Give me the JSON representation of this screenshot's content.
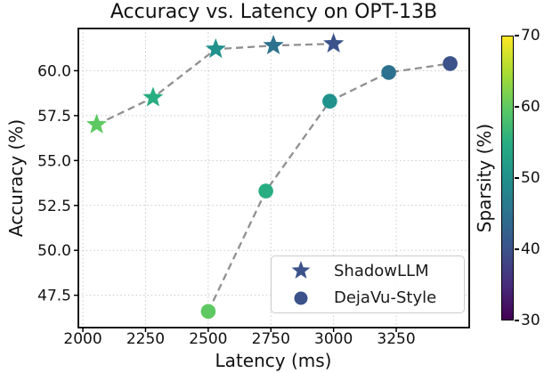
{
  "chart_data": {
    "type": "scatter",
    "title": "Accuracy vs. Latency on OPT-13B",
    "xlabel": "Latency (ms)",
    "ylabel": "Accuracy (%)",
    "xlim": [
      1982,
      3541
    ],
    "ylim": [
      45.7,
      62.35
    ],
    "xticks": [
      2000,
      2250,
      2500,
      2750,
      3000,
      3250
    ],
    "xtick_labels": [
      "2000",
      "2250",
      "2500",
      "2750",
      "3000",
      "3250"
    ],
    "yticks": [
      47.5,
      50.0,
      52.5,
      55.0,
      57.5,
      60.0
    ],
    "ytick_labels": [
      "47.5",
      "50.0",
      "52.5",
      "55.0",
      "57.5",
      "60.0"
    ],
    "grid": true,
    "grid_color": "#c9c9c9",
    "connector_color": "#909090",
    "series": [
      {
        "name": "ShadowLLM",
        "marker": "star",
        "points": [
          {
            "x": 2055,
            "y": 57.0,
            "sparsity": 60,
            "color": "#5ec962"
          },
          {
            "x": 2280,
            "y": 58.5,
            "sparsity": 55,
            "color": "#27ad81"
          },
          {
            "x": 2530,
            "y": 61.2,
            "sparsity": 50,
            "color": "#21918c"
          },
          {
            "x": 2760,
            "y": 61.4,
            "sparsity": 45,
            "color": "#2c728e"
          },
          {
            "x": 3000,
            "y": 61.5,
            "sparsity": 40,
            "color": "#3b528b"
          }
        ]
      },
      {
        "name": "DejaVu-Style",
        "marker": "circle",
        "points": [
          {
            "x": 2500,
            "y": 46.6,
            "sparsity": 60,
            "color": "#5ec962"
          },
          {
            "x": 2730,
            "y": 53.3,
            "sparsity": 55,
            "color": "#27ad81"
          },
          {
            "x": 2985,
            "y": 58.3,
            "sparsity": 50,
            "color": "#21918c"
          },
          {
            "x": 3220,
            "y": 59.9,
            "sparsity": 45,
            "color": "#2c728e"
          },
          {
            "x": 3465,
            "y": 60.4,
            "sparsity": 40,
            "color": "#3b528b"
          }
        ]
      }
    ],
    "legend": {
      "position": "lower right",
      "marker_color": "#3b528b",
      "entries": [
        {
          "label": "ShadowLLM",
          "marker": "star"
        },
        {
          "label": "DejaVu-Style",
          "marker": "circle"
        }
      ]
    },
    "colorbar": {
      "label": "Sparsity (%)",
      "min": 30,
      "max": 70,
      "ticks": [
        30,
        40,
        50,
        60,
        70
      ],
      "tick_labels": [
        "30",
        "40",
        "50",
        "60",
        "70"
      ],
      "stops": [
        {
          "t": 0.0,
          "color": "#440154"
        },
        {
          "t": 0.125,
          "color": "#472d7b"
        },
        {
          "t": 0.25,
          "color": "#3b528b"
        },
        {
          "t": 0.375,
          "color": "#2c728e"
        },
        {
          "t": 0.5,
          "color": "#21918c"
        },
        {
          "t": 0.625,
          "color": "#27ad81"
        },
        {
          "t": 0.75,
          "color": "#5ec962"
        },
        {
          "t": 0.875,
          "color": "#aadc32"
        },
        {
          "t": 1.0,
          "color": "#fde725"
        }
      ]
    }
  }
}
